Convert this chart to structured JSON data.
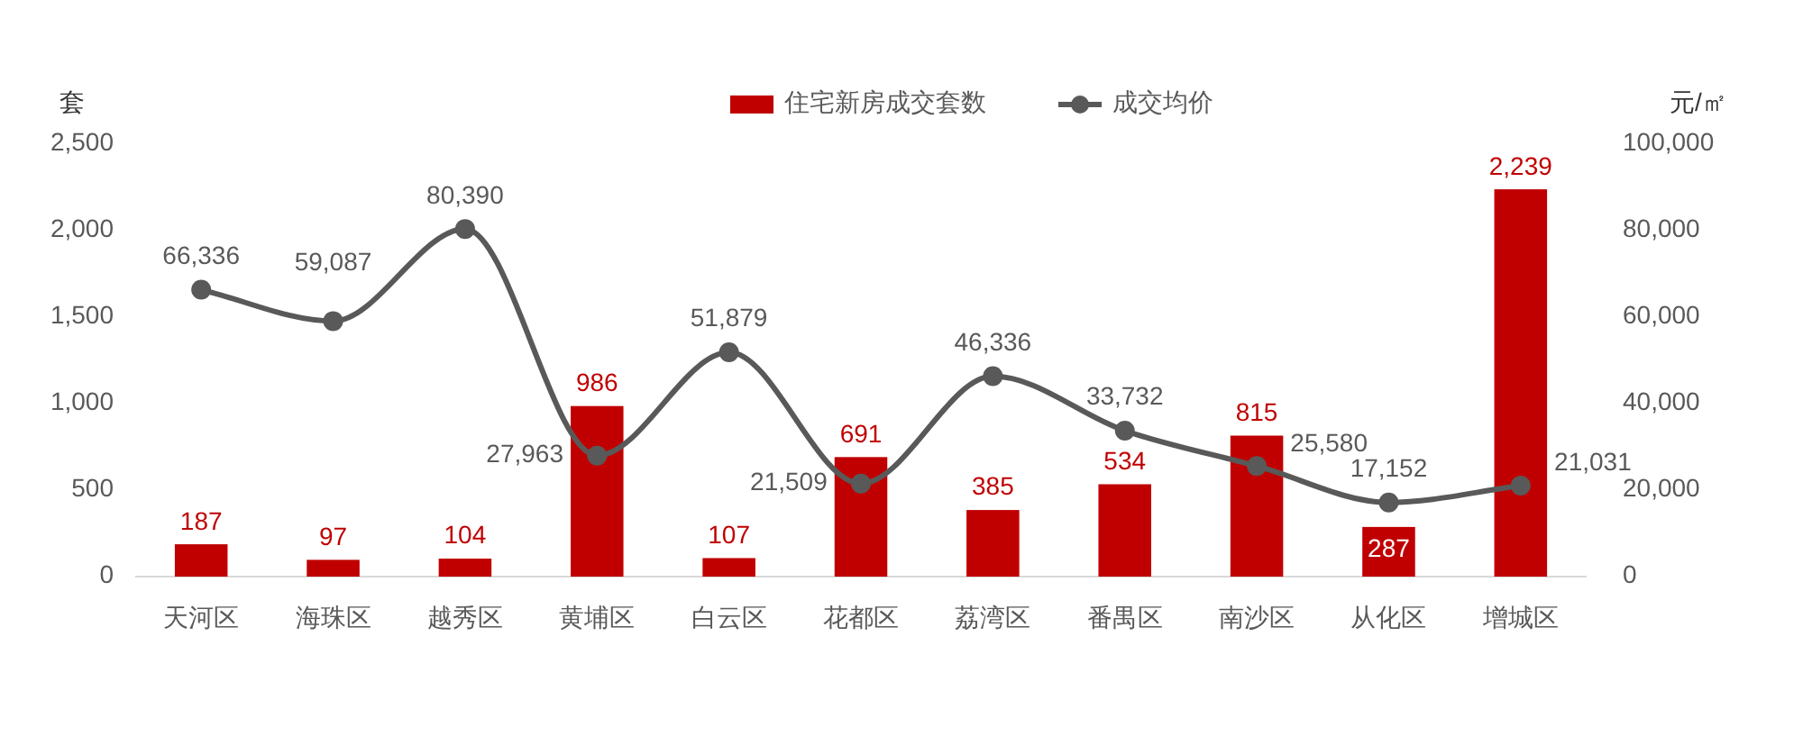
{
  "chart_data": {
    "type": "bar",
    "ylabel": "套",
    "y2label": "元/㎡",
    "categories": [
      "天河区",
      "海珠区",
      "越秀区",
      "黄埔区",
      "白云区",
      "花都区",
      "荔湾区",
      "番禺区",
      "南沙区",
      "从化区",
      "增城区"
    ],
    "series": [
      {
        "name": "住宅新房成交套数",
        "color": "#c00000",
        "values": [
          187,
          97,
          104,
          986,
          107,
          691,
          385,
          534,
          815,
          287,
          2239
        ],
        "value_labels": [
          "187",
          "97",
          "104",
          "986",
          "107",
          "691",
          "385",
          "534",
          "815",
          "287",
          "2,239"
        ]
      },
      {
        "name": "成交均价",
        "type": "line",
        "axis": "y2",
        "color": "#595959",
        "marker": "circle",
        "values": [
          66336,
          59087,
          80390,
          27963,
          51879,
          21509,
          46336,
          33732,
          25580,
          17152,
          21031
        ],
        "value_labels": [
          "66,336",
          "59,087",
          "80,390",
          "27,963",
          "51,879",
          "21,509",
          "46,336",
          "33,732",
          "25,580",
          "17,152",
          "21,031"
        ]
      }
    ],
    "ylim": [
      0,
      2500
    ],
    "yticks": [
      {
        "value": 0,
        "label": "0"
      },
      {
        "value": 500,
        "label": "500"
      },
      {
        "value": 1000,
        "label": "1,000"
      },
      {
        "value": 1500,
        "label": "1,500"
      },
      {
        "value": 2000,
        "label": "2,000"
      },
      {
        "value": 2500,
        "label": "2,500"
      }
    ],
    "y2lim": [
      0,
      100000
    ],
    "y2ticks": [
      {
        "value": 0,
        "label": "0"
      },
      {
        "value": 20000,
        "label": "20,000"
      },
      {
        "value": 40000,
        "label": "40,000"
      },
      {
        "value": 60000,
        "label": "60,000"
      },
      {
        "value": 80000,
        "label": "80,000"
      },
      {
        "value": 100000,
        "label": "100,000"
      }
    ],
    "legend": "top",
    "grid": false
  }
}
